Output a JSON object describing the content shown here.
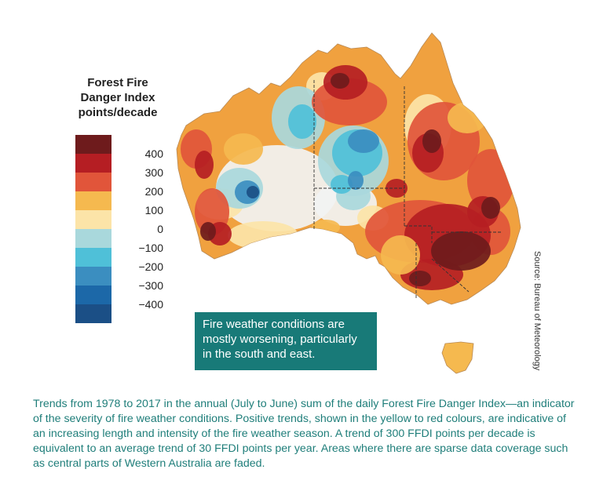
{
  "legend": {
    "title_lines": [
      "Forest Fire",
      "Danger Index",
      "points/decade"
    ],
    "swatches": [
      "#6e1b1c",
      "#b51e23",
      "#e1553a",
      "#f5b94f",
      "#fce4a8",
      "#a9d8dc",
      "#4fc0d8",
      "#3b8ec0",
      "#1c68a8",
      "#1b4f86"
    ],
    "ticks": [
      "400",
      "300",
      "200",
      "100",
      "0",
      "−100",
      "−200",
      "−300",
      "−400"
    ]
  },
  "callout": {
    "text": "Fire weather conditions are mostly worsening, particularly in the south and east."
  },
  "source": "Source: Bureau of Meteorology",
  "caption": "Trends from 1978 to 2017 in the annual (July to June) sum of the daily Forest Fire Danger Index—an indicator of the severity of fire weather conditions. Positive trends, shown in the yellow to red colours, are indicative of an increasing length and intensity of the fire weather season. A trend of 300 FFDI points per decade is equivalent to an average trend of 30 FFDI points per year. Areas where there are sparse data coverage such as central parts of Western Australia are faded.",
  "map": {
    "palette": {
      "base": "#f0a13f",
      "dark_red": "#6e1b1c",
      "red": "#b51e23",
      "orange": "#e1553a",
      "yellow": "#f5b94f",
      "cream": "#fce4a8",
      "light_blue": "#a9d8dc",
      "cyan": "#4fc0d8",
      "blue": "#3b8ec0",
      "navy": "#1b4f86",
      "faded": "#f2f3f3",
      "border": "#333333"
    }
  }
}
